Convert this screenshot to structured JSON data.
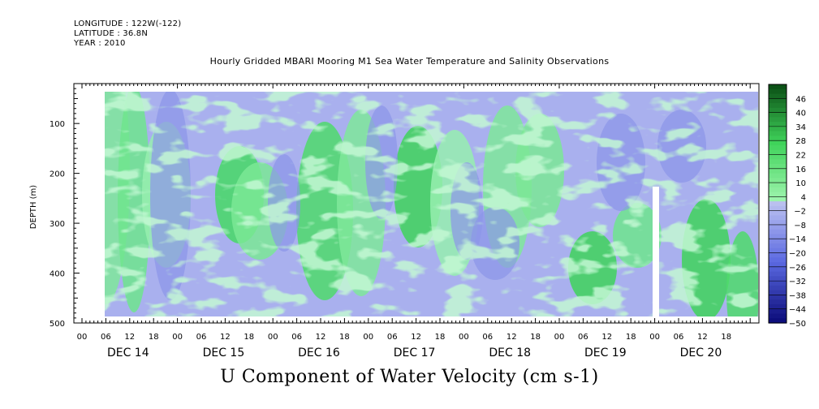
{
  "header": {
    "longitude": "LONGITUDE : 122W(-122)",
    "latitude": "LATITUDE : 36.8N",
    "year": "YEAR : 2010"
  },
  "title": "Hourly Gridded MBARI Mooring M1 Sea Water Temperature and Salinity Observations",
  "variable_title": "U Component of Water Velocity (cm s-1)",
  "chart_data": {
    "type": "heatmap",
    "ylabel": "DEPTH (m)",
    "y_ticks": [
      100,
      200,
      300,
      400,
      500
    ],
    "ylim": [
      500,
      20
    ],
    "xlim_hours": [
      0,
      168
    ],
    "x_hour_labels": [
      "00",
      "06",
      "12",
      "18",
      "00",
      "06",
      "12",
      "18",
      "00",
      "06",
      "12",
      "18",
      "00",
      "06",
      "12",
      "18",
      "00",
      "06",
      "12",
      "18",
      "00",
      "06",
      "12",
      "18",
      "00",
      "06",
      "12",
      "18"
    ],
    "x_day_labels": [
      "DEC 14",
      "DEC 15",
      "DEC 16",
      "DEC 17",
      "DEC 18",
      "DEC 19",
      "DEC 20"
    ],
    "colorbar_labels": [
      46,
      40,
      34,
      28,
      22,
      16,
      10,
      4,
      -2,
      -8,
      -14,
      -20,
      -26,
      -32,
      -38,
      -44,
      -50
    ],
    "colorbar_range": [
      -50,
      52
    ],
    "colors": {
      "negative_light": "#a9b0ee",
      "negative_mid": "#8b96e8",
      "positive_light": "#8ff0a8",
      "positive_mid": "#3fd35a",
      "dark_blue": "#0a0a78",
      "dark_green": "#0a4d14"
    }
  }
}
